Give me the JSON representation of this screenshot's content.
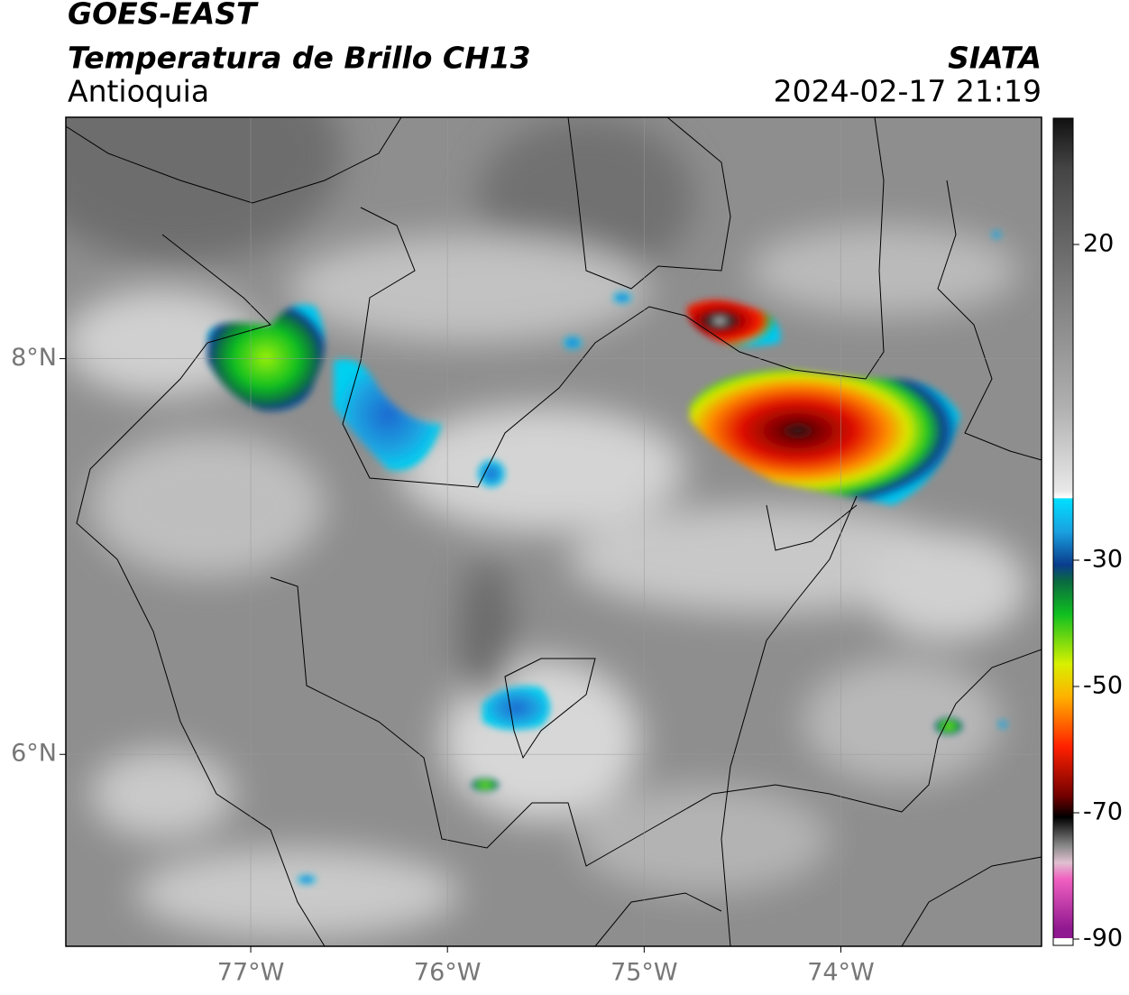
{
  "header": {
    "satellite": "GOES-EAST",
    "product": "Temperatura de Brillo CH13",
    "region": "Antioquia",
    "agency": "SIATA",
    "datetime": "2024-02-17 21:19"
  },
  "map": {
    "xlim": [
      -77.94,
      -72.98
    ],
    "ylim": [
      5.03,
      9.22
    ],
    "xticks": [
      {
        "value": -77,
        "label": "77°W"
      },
      {
        "value": -76,
        "label": "76°W"
      },
      {
        "value": -75,
        "label": "75°W"
      },
      {
        "value": -74,
        "label": "74°W"
      }
    ],
    "yticks": [
      {
        "value": 6,
        "label": "6°N"
      },
      {
        "value": 8,
        "label": "8°N"
      }
    ],
    "grid": true
  },
  "colorbar": {
    "clim": [
      -91,
      40
    ],
    "ticks": [
      20,
      -30,
      -50,
      -70,
      -90
    ]
  }
}
